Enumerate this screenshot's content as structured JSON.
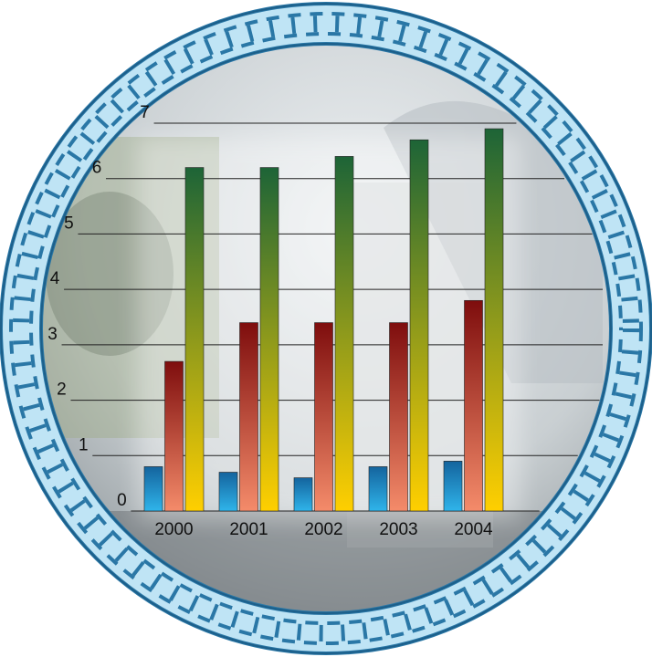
{
  "chart_data": {
    "type": "bar",
    "categories": [
      "2000",
      "2001",
      "2002",
      "2003",
      "2004"
    ],
    "series": [
      {
        "gradient": [
          "#14649e",
          "#2fb4ea"
        ],
        "values": [
          0.8,
          0.7,
          0.6,
          0.8,
          0.9
        ]
      },
      {
        "gradient": [
          "#7e0d0d",
          "#f48b6a"
        ],
        "values": [
          2.7,
          3.4,
          3.4,
          3.4,
          3.8
        ]
      },
      {
        "gradient": [
          "#1d6437",
          "#ffcf00"
        ],
        "values": [
          6.2,
          6.2,
          6.4,
          6.7,
          6.9
        ]
      }
    ],
    "ylim": [
      0,
      7
    ],
    "yticks": [
      0,
      1,
      2,
      3,
      4,
      5,
      6,
      7
    ],
    "grid": true
  }
}
